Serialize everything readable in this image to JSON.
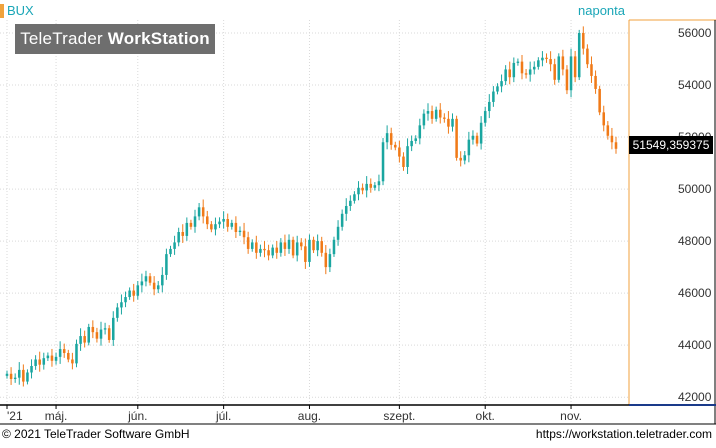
{
  "header": {
    "symbol": "BUX",
    "period": "naponta"
  },
  "logo": {
    "part1": "TeleTrader",
    "part2": "WorkStation"
  },
  "last_price_label": "51549,359375",
  "footer": {
    "copyright": "© 2021 TeleTrader Software GmbH",
    "url": "https://workstation.teletrader.com"
  },
  "colors": {
    "up": "#1aa6a0",
    "down": "#f07a18",
    "accent": "#f0a23c",
    "label_teal": "#1aa6b7"
  },
  "chart_data": {
    "type": "candlestick",
    "ylim": [
      41700,
      56500
    ],
    "yticks": [
      42000,
      44000,
      46000,
      48000,
      50000,
      52000,
      54000,
      56000
    ],
    "ytick_labels": [
      "42000",
      "44000",
      "46000",
      "48000",
      "50000",
      "52000",
      "54000",
      "56000"
    ],
    "x_labels": [
      {
        "label": "'21",
        "index": 0
      },
      {
        "label": "máj.",
        "index": 12
      },
      {
        "label": "jún.",
        "index": 32
      },
      {
        "label": "júl.",
        "index": 53
      },
      {
        "label": "aug.",
        "index": 74
      },
      {
        "label": "szept.",
        "index": 96
      },
      {
        "label": "okt.",
        "index": 117
      },
      {
        "label": "nov.",
        "index": 138
      }
    ],
    "closes": [
      42900,
      42700,
      42750,
      43050,
      42600,
      42950,
      43200,
      43450,
      43250,
      43500,
      43600,
      43400,
      43550,
      43850,
      43700,
      43450,
      43300,
      44050,
      44350,
      44100,
      44700,
      44500,
      44250,
      44600,
      44650,
      44200,
      45050,
      45450,
      45650,
      45850,
      46100,
      45900,
      46300,
      46450,
      46650,
      46400,
      46150,
      46300,
      46700,
      47500,
      47700,
      47950,
      48350,
      48200,
      48700,
      48550,
      48950,
      49300,
      48950,
      48650,
      48450,
      48650,
      48750,
      48850,
      48550,
      48700,
      48350,
      48400,
      48150,
      47700,
      47950,
      47550,
      47700,
      47650,
      47450,
      47750,
      47550,
      47950,
      47700,
      48050,
      47450,
      47950,
      47800,
      47200,
      48050,
      47650,
      48000,
      47550,
      47000,
      47500,
      48050,
      48550,
      49050,
      49350,
      49550,
      49800,
      50050,
      49950,
      50200,
      50050,
      50150,
      50300,
      51800,
      52150,
      51700,
      51600,
      51250,
      50850,
      51650,
      51850,
      51950,
      52450,
      52900,
      53000,
      52700,
      53050,
      52750,
      52700,
      52400,
      52700,
      51200,
      51100,
      51300,
      51900,
      52050,
      51750,
      52550,
      53000,
      53350,
      53750,
      53950,
      54150,
      54600,
      54300,
      54850,
      54900,
      54450,
      54400,
      54600,
      54700,
      54950,
      55050,
      55000,
      54800,
      54200,
      55100,
      54600,
      53800,
      55100,
      54300,
      56000,
      55400,
      54800,
      54350,
      53850,
      52950,
      52450,
      52050,
      51800,
      51549
    ]
  }
}
